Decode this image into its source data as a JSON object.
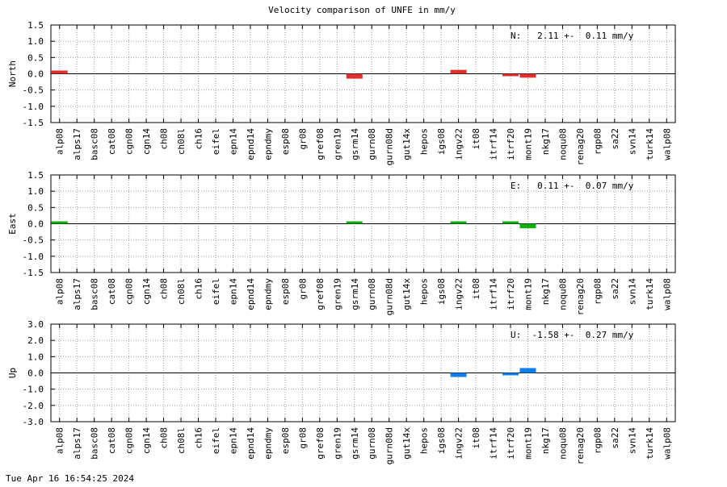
{
  "title": "Velocity comparison of UNFE in mm/y",
  "timestamp": "Tue Apr 16 16:54:25 2024",
  "chart_data": {
    "type": "bar",
    "categories": [
      "alp08",
      "alps17",
      "basc08",
      "cat08",
      "cgn08",
      "cgn14",
      "ch08",
      "ch08l",
      "ch16",
      "eifel",
      "epn14",
      "epnd14",
      "epndmy",
      "esp08",
      "gr08",
      "gref08",
      "gren19",
      "gsrm14",
      "gurn08",
      "gurn08d",
      "gut14x",
      "hepos",
      "igs08",
      "ingv22",
      "it08",
      "itrf14",
      "itrf20",
      "mont19",
      "nkg17",
      "noqu08",
      "renag20",
      "rgp08",
      "sa22",
      "svn14",
      "turk14",
      "walp08"
    ],
    "panels": [
      {
        "ylabel": "North",
        "stat_label": "N:   2.11 +-  0.11 mm/y",
        "color": "#e03030",
        "ylim": [
          -1.5,
          1.5
        ],
        "yticks": [
          1.5,
          1.0,
          0.5,
          0.0,
          -0.5,
          -1.0,
          -1.5
        ],
        "ytick_labels": [
          "1.5",
          "1.0",
          "0.5",
          "0.0",
          "-0.5",
          "-1.0",
          "-1.5"
        ],
        "values": [
          0.1,
          0,
          0,
          0,
          0,
          0,
          0,
          0,
          0,
          0,
          0,
          0,
          0,
          0,
          0,
          0,
          0,
          -0.15,
          0,
          0,
          0,
          0,
          0,
          0.12,
          0,
          0,
          -0.05,
          -0.12,
          0,
          0,
          0,
          0,
          0,
          0,
          0,
          0
        ]
      },
      {
        "ylabel": "East",
        "stat_label": "E:   0.11 +-  0.07 mm/y",
        "color": "#10b010",
        "ylim": [
          -1.5,
          1.5
        ],
        "yticks": [
          1.5,
          1.0,
          0.5,
          0.0,
          -0.5,
          -1.0,
          -1.5
        ],
        "ytick_labels": [
          "1.5",
          "1.0",
          "0.5",
          "0.0",
          "-0.5",
          "-1.0",
          "-1.5"
        ],
        "values": [
          0.02,
          0,
          0,
          0,
          0,
          0,
          0,
          0,
          0,
          0,
          0,
          0,
          0,
          0,
          0,
          0,
          0,
          0.02,
          0,
          0,
          0,
          0,
          0,
          0.04,
          0,
          0,
          0.04,
          -0.14,
          0,
          0,
          0,
          0,
          0,
          0,
          0,
          0
        ]
      },
      {
        "ylabel": "Up",
        "stat_label": "U:  -1.58 +-  0.27 mm/y",
        "color": "#1080e8",
        "ylim": [
          -3.0,
          3.0
        ],
        "yticks": [
          3.0,
          2.0,
          1.0,
          0.0,
          -1.0,
          -2.0,
          -3.0
        ],
        "ytick_labels": [
          "3.0",
          "2.0",
          "1.0",
          "0.0",
          "-1.0",
          "-2.0",
          "-3.0"
        ],
        "values": [
          0,
          0,
          0,
          0,
          0,
          0,
          0,
          0,
          0,
          0,
          0,
          0,
          0,
          0,
          0,
          0,
          0,
          0,
          0,
          0,
          0,
          0,
          0,
          -0.25,
          0,
          0,
          -0.06,
          0.3,
          0,
          0,
          0,
          0,
          0,
          0,
          0,
          0
        ]
      }
    ]
  }
}
